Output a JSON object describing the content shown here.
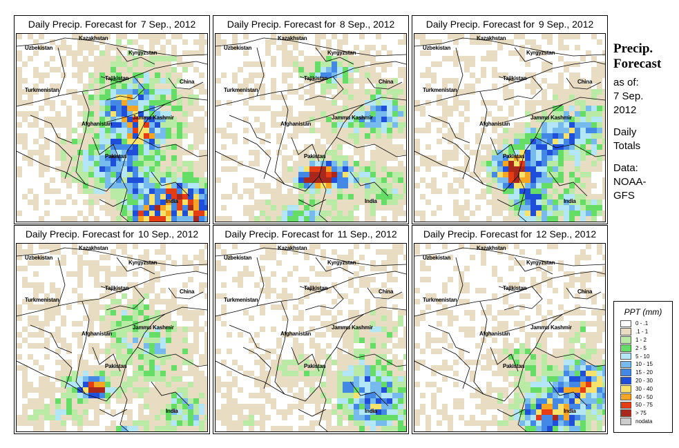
{
  "panels": [
    {
      "title": "Daily Precip. Forecast for",
      "date": "7 Sep., 2012"
    },
    {
      "title": "Daily Precip. Forecast for",
      "date": "8 Sep., 2012"
    },
    {
      "title": "Daily Precip. Forecast for",
      "date": "9 Sep., 2012"
    },
    {
      "title": "Daily Precip. Forecast for",
      "date": "10 Sep., 2012"
    },
    {
      "title": "Daily Precip. Forecast for",
      "date": "11 Sep., 2012"
    },
    {
      "title": "Daily Precip. Forecast for",
      "date": "12 Sep., 2012"
    }
  ],
  "map_labels": {
    "kazakhstan": "Kazakhstan",
    "uzbekistan": "Uzbekistan",
    "kyrgyzstan": "Kyrgyzstan",
    "tajikistan": "Tajikistan",
    "turkmenistan": "Turkmenistan",
    "china": "China",
    "afghanistan": "Afghanistan",
    "jammu_kashmir": "Jammu Kashmir",
    "pakistan": "Pakistan",
    "india": "India"
  },
  "side_info": {
    "title_line1": "Precip.",
    "title_line2": "Forecast",
    "as_of": "as of:",
    "date_line1": "7 Sep.",
    "date_line2": "2012",
    "totals_line1": "Daily",
    "totals_line2": "Totals",
    "data_label": "Data:",
    "source_line1": "NOAA-",
    "source_line2": "GFS"
  },
  "legend": {
    "title": "PPT (mm)",
    "items": [
      {
        "label": "0 - .1",
        "color": "#ffffff"
      },
      {
        "label": ".1 - 1",
        "color": "#e8dcc2"
      },
      {
        "label": "1 - 2",
        "color": "#b9eba7"
      },
      {
        "label": "2 - 5",
        "color": "#66dd66"
      },
      {
        "label": "5 - 10",
        "color": "#b3e6f7"
      },
      {
        "label": "10 - 15",
        "color": "#77bbee"
      },
      {
        "label": "15 - 20",
        "color": "#4488e6"
      },
      {
        "label": "20 - 30",
        "color": "#1f4fd8"
      },
      {
        "label": "30 - 40",
        "color": "#f7e36b"
      },
      {
        "label": "40 - 50",
        "color": "#f6a623"
      },
      {
        "label": "50 - 75",
        "color": "#e63c14"
      },
      {
        "label": "> 75",
        "color": "#a8281c"
      },
      {
        "label": "nodata",
        "color": "#cccccc"
      }
    ]
  }
}
